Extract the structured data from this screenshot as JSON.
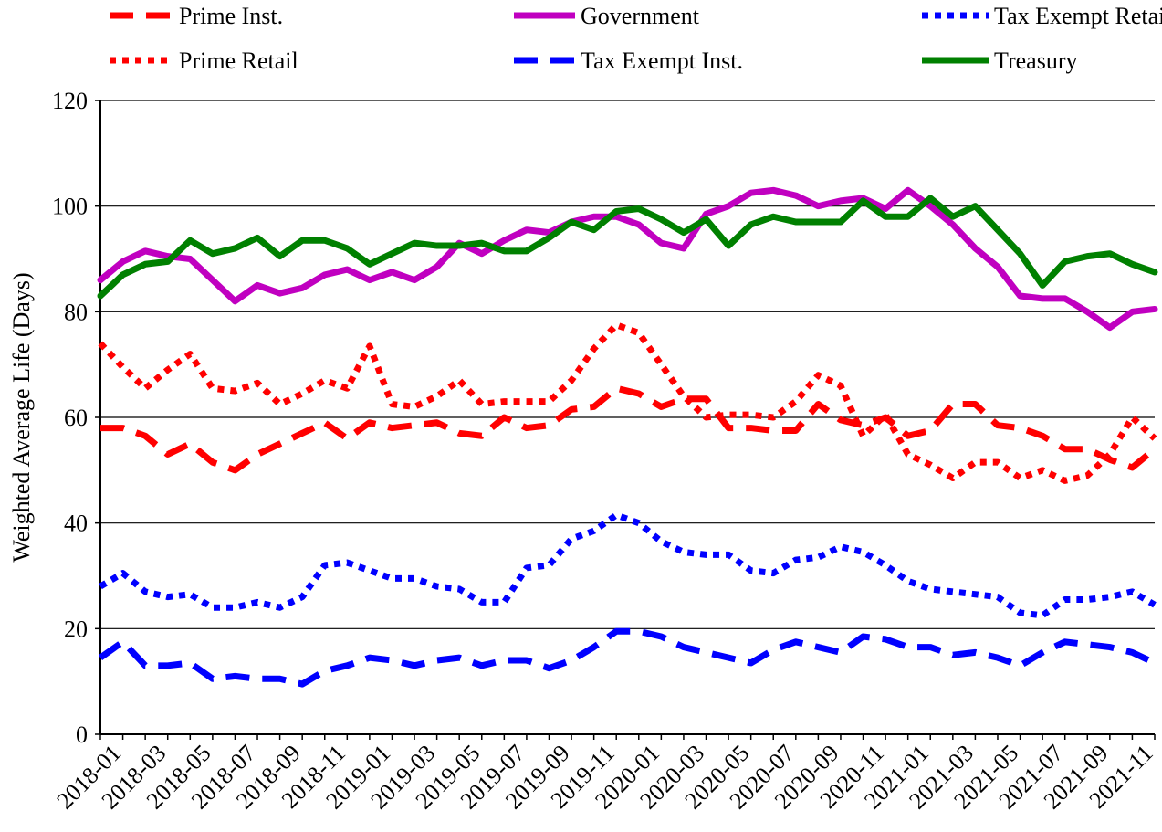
{
  "chart_data": {
    "type": "line",
    "y_label": "Weighted Average Life (Days)",
    "categories": [
      "2018-01",
      null,
      "2018-03",
      null,
      "2018-05",
      null,
      "2018-07",
      null,
      "2018-09",
      null,
      "2018-11",
      null,
      "2019-01",
      null,
      "2019-03",
      null,
      "2019-05",
      null,
      "2019-07",
      null,
      "2019-09",
      null,
      "2019-11",
      null,
      "2020-01",
      null,
      "2020-03",
      null,
      "2020-05",
      null,
      "2020-07",
      null,
      "2020-09",
      null,
      "2020-11",
      null,
      "2021-01",
      null,
      "2021-03",
      null,
      "2021-05",
      null,
      "2021-07",
      null,
      "2021-09",
      null,
      "2021-11",
      null
    ],
    "ylim": [
      0,
      120
    ],
    "yticks": [
      0,
      20,
      40,
      60,
      80,
      100,
      120
    ],
    "grid": true,
    "series": [
      {
        "name": "Prime Inst.",
        "color": "#ff0000",
        "style": "dashed",
        "values": [
          58,
          58,
          56.5,
          53,
          55,
          51.5,
          50,
          53,
          55,
          57,
          59,
          56,
          59,
          58,
          58.5,
          59,
          57,
          56.5,
          60,
          58,
          58.5,
          61.5,
          62,
          65.5,
          64.5,
          62,
          63.5,
          63.5,
          58,
          58,
          57.5,
          57.5,
          62.5,
          59.5,
          58.5,
          60,
          56.5,
          57.5,
          62.5,
          62.5,
          58.5,
          58,
          56.5,
          54,
          54,
          52,
          50.5,
          54
        ]
      },
      {
        "name": "Prime Retail",
        "color": "#ff0000",
        "style": "dotted",
        "values": [
          74,
          69.5,
          65.5,
          69,
          72,
          65.5,
          65,
          66.5,
          62.5,
          64.5,
          67,
          65.5,
          73.5,
          62.5,
          62,
          64,
          67,
          62.5,
          63,
          63,
          63,
          67,
          73,
          77.5,
          76,
          70,
          64,
          60,
          60.5,
          60.5,
          60,
          63,
          68,
          66,
          56.5,
          60.5,
          53,
          51,
          48.5,
          51.5,
          51.5,
          48.5,
          50,
          48,
          49,
          53,
          60,
          56
        ]
      },
      {
        "name": "Government",
        "color": "#c000c0",
        "style": "solid",
        "values": [
          86,
          89.5,
          91.5,
          90.5,
          90,
          86,
          82,
          85,
          83.5,
          84.5,
          87,
          88,
          86,
          87.5,
          86,
          88.5,
          93,
          91,
          93.5,
          95.5,
          95,
          97,
          98,
          98,
          96.5,
          93,
          92,
          98.5,
          100,
          102.5,
          103,
          102,
          100,
          101,
          101.5,
          99.5,
          103,
          100,
          96.5,
          92,
          88.5,
          83,
          82.5,
          82.5,
          80,
          77,
          80,
          80.5
        ]
      },
      {
        "name": "Tax Exempt Inst.",
        "color": "#0000ff",
        "style": "dashed",
        "values": [
          14.5,
          17.5,
          13,
          13,
          13.5,
          10.5,
          11,
          10.5,
          10.5,
          9.5,
          12,
          13,
          14.5,
          14,
          13,
          14,
          14.5,
          13,
          14,
          14,
          12.5,
          14,
          16.5,
          19.5,
          19.5,
          18.5,
          16.5,
          15.5,
          14.5,
          13.5,
          16,
          17.5,
          16.5,
          15.5,
          18.5,
          18,
          16.5,
          16.5,
          15,
          15.5,
          14.5,
          13,
          15.5,
          17.5,
          17,
          16.5,
          15.5,
          13.5
        ]
      },
      {
        "name": "Tax Exempt Retail",
        "color": "#0000ff",
        "style": "dotted",
        "values": [
          28,
          30.5,
          27,
          26,
          26.5,
          24,
          24,
          25,
          24,
          26,
          32,
          32.5,
          31,
          29.5,
          29.5,
          28,
          27.5,
          25,
          25,
          31.5,
          32,
          37,
          38.5,
          41.5,
          40,
          36.5,
          34.5,
          34,
          34,
          31,
          30.5,
          33,
          33.5,
          35.5,
          34.5,
          32,
          29,
          27.5,
          27,
          26.5,
          26,
          23,
          22.5,
          25.5,
          25.5,
          26,
          27,
          24.5
        ]
      },
      {
        "name": "Treasury",
        "color": "#008000",
        "style": "solid",
        "values": [
          83,
          87,
          89,
          89.5,
          93.5,
          91,
          92,
          94,
          90.5,
          93.5,
          93.5,
          92,
          89,
          91,
          93,
          92.5,
          92.5,
          93,
          91.5,
          91.5,
          94,
          97,
          95.5,
          99,
          99.5,
          97.5,
          95,
          97.5,
          92.5,
          96.5,
          98,
          97,
          97,
          97,
          101,
          98,
          98,
          101.5,
          98,
          100,
          95.5,
          91,
          85,
          89.5,
          90.5,
          91,
          89,
          87.5
        ]
      }
    ]
  }
}
